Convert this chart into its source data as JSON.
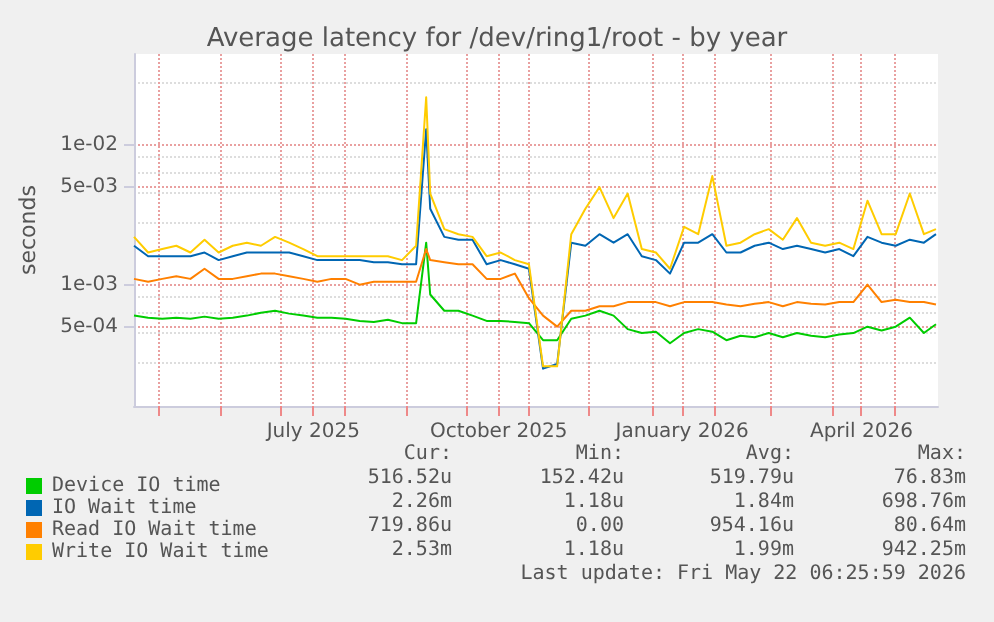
{
  "chart_data": {
    "type": "line",
    "title": "Average latency for /dev/ring1/root - by year",
    "ylabel": "seconds",
    "log": "y",
    "grid": true,
    "legend": "bottom",
    "marker": "none",
    "line_style": "solid",
    "xlim": [
      "2025-04-19",
      "2026-05-23"
    ],
    "xticks": [
      {
        "value": "2025-05-01",
        "label": null
      },
      {
        "value": "2025-06-01",
        "label": null
      },
      {
        "value": "2025-07-01",
        "label": null
      },
      {
        "value": "2025-07-17",
        "label": "July 2025"
      },
      {
        "value": "2025-08-01",
        "label": null
      },
      {
        "value": "2025-09-01",
        "label": null
      },
      {
        "value": "2025-10-01",
        "label": null
      },
      {
        "value": "2025-10-17",
        "label": "October 2025"
      },
      {
        "value": "2025-11-01",
        "label": null
      },
      {
        "value": "2025-12-01",
        "label": null
      },
      {
        "value": "2026-01-01",
        "label": null
      },
      {
        "value": "2026-01-16",
        "label": "January 2026"
      },
      {
        "value": "2026-02-01",
        "label": null
      },
      {
        "value": "2026-03-01",
        "label": null
      },
      {
        "value": "2026-04-01",
        "label": null
      },
      {
        "value": "2026-04-15",
        "label": "April 2026"
      },
      {
        "value": "2026-05-01",
        "label": null
      }
    ],
    "ylim": [
      0.000135,
      0.045
    ],
    "yticks": [
      {
        "value": 0.0005,
        "label": "5e-04"
      },
      {
        "value": 0.001,
        "label": "1e-03"
      },
      {
        "value": 0.005,
        "label": "5e-03"
      },
      {
        "value": 0.01,
        "label": "1e-02"
      }
    ],
    "x": [
      "2025-04-19",
      "2025-04-26",
      "2025-05-03",
      "2025-05-10",
      "2025-05-17",
      "2025-05-24",
      "2025-05-31",
      "2025-06-07",
      "2025-06-14",
      "2025-06-21",
      "2025-06-28",
      "2025-07-05",
      "2025-07-12",
      "2025-07-19",
      "2025-07-26",
      "2025-08-02",
      "2025-08-09",
      "2025-08-16",
      "2025-08-23",
      "2025-08-30",
      "2025-09-06",
      "2025-09-11",
      "2025-09-13",
      "2025-09-20",
      "2025-09-27",
      "2025-10-04",
      "2025-10-11",
      "2025-10-18",
      "2025-10-25",
      "2025-11-01",
      "2025-11-08",
      "2025-11-15",
      "2025-11-22",
      "2025-11-29",
      "2025-12-06",
      "2025-12-13",
      "2025-12-20",
      "2025-12-27",
      "2026-01-03",
      "2026-01-10",
      "2026-01-17",
      "2026-01-24",
      "2026-01-31",
      "2026-02-07",
      "2026-02-14",
      "2026-02-21",
      "2026-02-28",
      "2026-03-07",
      "2026-03-14",
      "2026-03-21",
      "2026-03-28",
      "2026-04-04",
      "2026-04-11",
      "2026-04-18",
      "2026-04-25",
      "2026-05-02",
      "2026-05-09",
      "2026-05-16",
      "2026-05-22"
    ],
    "series": [
      {
        "name": "Device IO time",
        "color": "#00cc00",
        "values": [
          0.0006,
          0.00058,
          0.00057,
          0.00058,
          0.00057,
          0.00059,
          0.00057,
          0.00058,
          0.0006,
          0.00063,
          0.00065,
          0.00062,
          0.0006,
          0.00058,
          0.00058,
          0.00057,
          0.00055,
          0.00054,
          0.00056,
          0.00053,
          0.00053,
          0.002,
          0.00085,
          0.00065,
          0.00065,
          0.0006,
          0.00055,
          0.00055,
          0.00054,
          0.00053,
          0.0004,
          0.0004,
          0.00057,
          0.0006,
          0.00065,
          0.0006,
          0.00048,
          0.00045,
          0.00046,
          0.00038,
          0.00045,
          0.00048,
          0.00046,
          0.0004,
          0.00043,
          0.00042,
          0.00045,
          0.00042,
          0.00045,
          0.00043,
          0.00042,
          0.00044,
          0.00045,
          0.0005,
          0.00047,
          0.0005,
          0.00058,
          0.00045,
          0.00052
        ]
      },
      {
        "name": "IO Wait time",
        "color": "#0066b3",
        "values": [
          0.0019,
          0.0016,
          0.0016,
          0.0016,
          0.0016,
          0.0017,
          0.0015,
          0.0016,
          0.0017,
          0.0017,
          0.0017,
          0.0017,
          0.0016,
          0.0015,
          0.0015,
          0.0015,
          0.0015,
          0.00145,
          0.00145,
          0.0014,
          0.0014,
          0.013,
          0.0035,
          0.0022,
          0.0021,
          0.0021,
          0.0014,
          0.0015,
          0.0014,
          0.0013,
          0.00025,
          0.00027,
          0.002,
          0.0019,
          0.0023,
          0.002,
          0.0023,
          0.0016,
          0.0015,
          0.0012,
          0.002,
          0.002,
          0.0023,
          0.0017,
          0.0017,
          0.0019,
          0.002,
          0.0018,
          0.0019,
          0.0018,
          0.0017,
          0.0018,
          0.0016,
          0.0022,
          0.002,
          0.0019,
          0.0021,
          0.002,
          0.0023
        ]
      },
      {
        "name": "Read IO Wait time",
        "color": "#ff8000",
        "values": [
          0.0011,
          0.00105,
          0.0011,
          0.00115,
          0.0011,
          0.0013,
          0.0011,
          0.0011,
          0.00115,
          0.0012,
          0.0012,
          0.00115,
          0.0011,
          0.00105,
          0.0011,
          0.0011,
          0.001,
          0.00105,
          0.00105,
          0.00105,
          0.00105,
          0.0018,
          0.0015,
          0.00145,
          0.0014,
          0.0014,
          0.0011,
          0.0011,
          0.0012,
          0.0008,
          0.0006,
          0.0005,
          0.00065,
          0.00065,
          0.0007,
          0.0007,
          0.00075,
          0.00075,
          0.00075,
          0.0007,
          0.00075,
          0.00075,
          0.00075,
          0.00072,
          0.0007,
          0.00073,
          0.00075,
          0.0007,
          0.00075,
          0.00073,
          0.00072,
          0.00075,
          0.00075,
          0.001,
          0.00075,
          0.00078,
          0.00075,
          0.00075,
          0.00072
        ]
      },
      {
        "name": "Write IO Wait time",
        "color": "#ffcc00",
        "values": [
          0.0022,
          0.0017,
          0.0018,
          0.0019,
          0.0017,
          0.0021,
          0.0017,
          0.0019,
          0.002,
          0.0019,
          0.0022,
          0.002,
          0.0018,
          0.0016,
          0.0016,
          0.0016,
          0.0016,
          0.0016,
          0.0016,
          0.0015,
          0.0019,
          0.022,
          0.0045,
          0.0025,
          0.0023,
          0.0022,
          0.0016,
          0.0017,
          0.0015,
          0.0014,
          0.00026,
          0.00026,
          0.0023,
          0.0035,
          0.005,
          0.003,
          0.0045,
          0.0018,
          0.0017,
          0.0013,
          0.0026,
          0.0023,
          0.006,
          0.0019,
          0.002,
          0.0023,
          0.0025,
          0.0021,
          0.003,
          0.002,
          0.0019,
          0.002,
          0.0018,
          0.004,
          0.0023,
          0.0023,
          0.0045,
          0.0023,
          0.0025
        ]
      }
    ],
    "annotations": [
      "Cur:",
      "Min:",
      "Avg:",
      "Max:",
      "516.52u",
      "152.42u",
      "519.79u",
      "76.83m",
      "2.26m",
      "1.18u",
      "1.84m",
      "698.76m",
      "719.86u",
      "0.00",
      "954.16u",
      "80.64m",
      "2.53m",
      "1.18u",
      "1.99m",
      "942.25m",
      "Last update: Fri May 22 06:25:59 2026"
    ]
  }
}
